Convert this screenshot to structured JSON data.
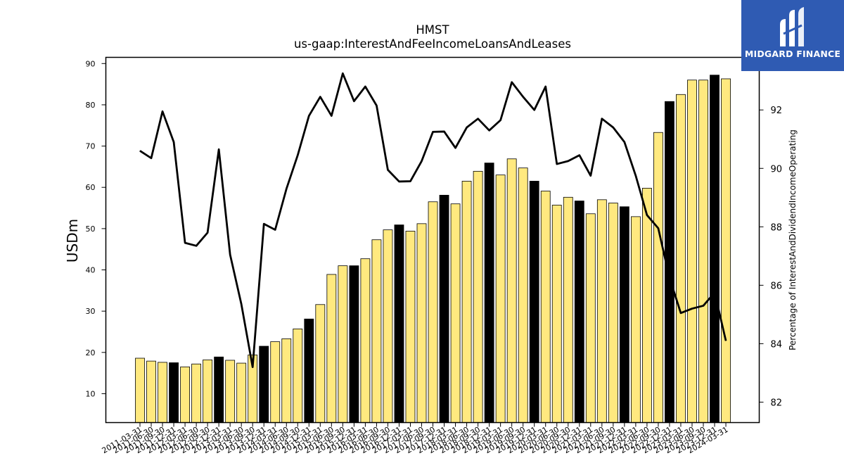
{
  "chart_data": {
    "type": "bar+line",
    "title": "HMST",
    "subtitle": "us-gaap:InterestAndFeeIncomeLoansAndLeases",
    "ylabel": "USDm",
    "y2label": "Percentage of InterestAndDividendIncomeOperating",
    "ylim": [
      3,
      91.5
    ],
    "y2lim": [
      81.3,
      93.8
    ],
    "yticks": [
      10,
      20,
      30,
      40,
      50,
      60,
      70,
      80,
      90
    ],
    "y2ticks": [
      82,
      84,
      86,
      88,
      90,
      92
    ],
    "grid": false,
    "colors": {
      "bar": "#ffe97f",
      "bar_q4": "#000000",
      "bar_edge": "#000000",
      "line": "#000000"
    },
    "categories": [
      "2011-03-31",
      "2011-06-30",
      "2011-09-30",
      "2011-12-31",
      "2012-03-31",
      "2012-06-30",
      "2012-09-30",
      "2012-12-31",
      "2013-03-31",
      "2013-06-30",
      "2013-09-30",
      "2013-12-31",
      "2014-03-31",
      "2014-06-30",
      "2014-09-30",
      "2014-12-31",
      "2015-03-31",
      "2015-06-30",
      "2015-09-30",
      "2015-12-31",
      "2016-03-31",
      "2016-06-30",
      "2016-09-30",
      "2016-12-31",
      "2017-03-31",
      "2017-06-30",
      "2017-09-30",
      "2017-12-31",
      "2018-03-31",
      "2018-06-30",
      "2018-09-30",
      "2018-12-31",
      "2019-03-31",
      "2019-06-30",
      "2019-09-30",
      "2019-12-31",
      "2020-03-31",
      "2020-06-30",
      "2020-09-30",
      "2020-12-31",
      "2021-03-31",
      "2021-06-30",
      "2021-09-30",
      "2021-12-31",
      "2022-03-31",
      "2022-06-30",
      "2022-09-30",
      "2022-12-31",
      "2023-03-31",
      "2023-06-30",
      "2023-09-30",
      "2023-12-31",
      "2024-03-31"
    ],
    "tick_labels": [
      "2011-03-31",
      "2011-06-30",
      "2011-09-30",
      "2011-12-31",
      "2012-03-31",
      "2012-06-30",
      "2012-09-30",
      "2012-12-31",
      "2013-03-31",
      "2013-06-30",
      "2013-09-30",
      "2013-12-31",
      "2014-03-31",
      "2014-06-30",
      "2014-09-30",
      "2014-12-31",
      "2015-03-31",
      "2015-06-30",
      "2015-09-30",
      "2015-12-31",
      "2016-03-31",
      "2016-06-30",
      "2016-09-30",
      "2016-12-31",
      "2017-03-31",
      "2017-06-30",
      "2017-09-30",
      "2017-12-31",
      "2018-03-31",
      "2018-06-30",
      "2018-09-30",
      "2018-12-31",
      "2019-03-31",
      "2019-06-30",
      "2019-09-30",
      "2019-12-31",
      "2020-03-31",
      "2020-06-30",
      "2020-09-30",
      "2020-12-31",
      "2021-03-31",
      "2021-06-30",
      "2021-09-30",
      "2021-12-31",
      "2022-03-31",
      "2022-06-30",
      "2022-09-30",
      "2022-12-31",
      "2023-03-31",
      "2023-06-30",
      "2023-09-30",
      "2023-12-31",
      "2024-03-31"
    ],
    "bar_values": [
      18.6,
      17.9,
      17.6,
      17.5,
      16.5,
      17.2,
      18.2,
      18.9,
      18.1,
      17.4,
      19.4,
      21.5,
      22.6,
      23.3,
      25.7,
      28.1,
      31.6,
      38.9,
      41.0,
      41.0,
      42.7,
      47.3,
      49.7,
      50.9,
      49.4,
      51.2,
      56.5,
      58.1,
      56.0,
      61.5,
      63.9,
      65.9,
      63.0,
      66.9,
      64.7,
      61.5,
      59.1,
      55.7,
      57.6,
      56.7,
      53.6,
      57.0,
      56.2,
      55.3,
      52.9,
      59.8,
      73.3,
      80.8,
      82.5,
      86.0,
      86.0,
      87.2,
      86.3
    ],
    "line_values": [
      90.6,
      90.35,
      91.95,
      90.9,
      87.45,
      87.35,
      87.8,
      90.65,
      87.05,
      85.35,
      83.2,
      88.1,
      87.9,
      89.3,
      90.45,
      91.8,
      92.45,
      91.8,
      93.25,
      92.3,
      92.8,
      92.15,
      89.95,
      89.55,
      89.56,
      90.25,
      91.25,
      91.26,
      90.7,
      91.4,
      91.7,
      91.3,
      91.65,
      92.95,
      92.45,
      92.0,
      92.8,
      90.15,
      90.25,
      90.45,
      89.75,
      91.7,
      91.4,
      90.9,
      89.75,
      88.4,
      87.95,
      86.25,
      85.05,
      85.2,
      85.3,
      85.75,
      84.1
    ]
  },
  "logo": {
    "text": "MIDGARD FINANCE",
    "icon": "midgard-logo-icon"
  }
}
